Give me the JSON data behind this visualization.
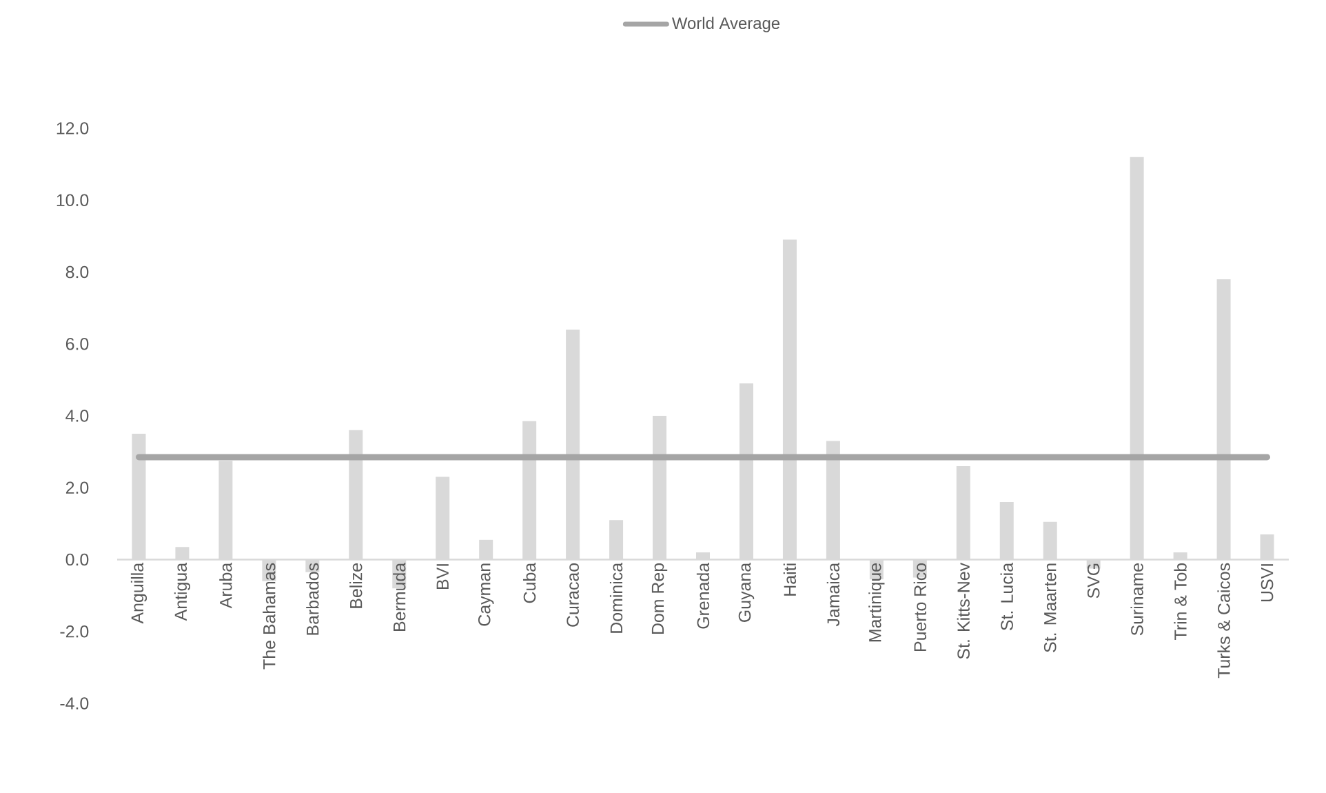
{
  "chart_data": {
    "type": "bar",
    "categories": [
      "Anguilla",
      "Antigua",
      "Aruba",
      "The Bahamas",
      "Barbados",
      "Belize",
      "Bermuda",
      "BVI",
      "Cayman",
      "Cuba",
      "Curacao",
      "Dominica",
      "Dom Rep",
      "Grenada",
      "Guyana",
      "Haiti",
      "Jamaica",
      "Martinique",
      "Puerto Rico",
      "St. Kitts-Nev",
      "St. Lucia",
      "St. Maarten",
      "SVG",
      "Suriname",
      "Trin & Tob",
      "Turks & Caicos",
      "USVI"
    ],
    "series": [
      {
        "color": "#d9d9d9",
        "values": [
          3.5,
          0.35,
          2.75,
          -0.6,
          -0.35,
          3.6,
          -0.8,
          2.3,
          0.55,
          3.85,
          6.4,
          1.1,
          4.0,
          0.2,
          4.9,
          8.9,
          3.3,
          -0.55,
          -0.5,
          2.6,
          1.6,
          1.05,
          -0.25,
          11.2,
          0.2,
          7.8,
          0.7
        ]
      },
      {
        "type": "line",
        "name": "World Average",
        "color": "#a5a5a5",
        "values": [
          2.85,
          2.85,
          2.85,
          2.85,
          2.85,
          2.85,
          2.85,
          2.85,
          2.85,
          2.85,
          2.85,
          2.85,
          2.85,
          2.85,
          2.85,
          2.85,
          2.85,
          2.85,
          2.85,
          2.85,
          2.85,
          2.85,
          2.85,
          2.85,
          2.85,
          2.85,
          2.85
        ]
      }
    ],
    "ylim": [
      -4,
      12
    ],
    "yticks": [
      {
        "value": -4,
        "label": "-4.0"
      },
      {
        "value": -2,
        "label": "-2.0"
      },
      {
        "value": 0,
        "label": "0.0"
      },
      {
        "value": 2,
        "label": "2.0"
      },
      {
        "value": 4,
        "label": "4.0"
      },
      {
        "value": 6,
        "label": "6.0"
      },
      {
        "value": 8,
        "label": "8.0"
      },
      {
        "value": 10,
        "label": "10.0"
      },
      {
        "value": 12,
        "label": "12.0"
      }
    ],
    "grid": false,
    "legend": "top"
  }
}
